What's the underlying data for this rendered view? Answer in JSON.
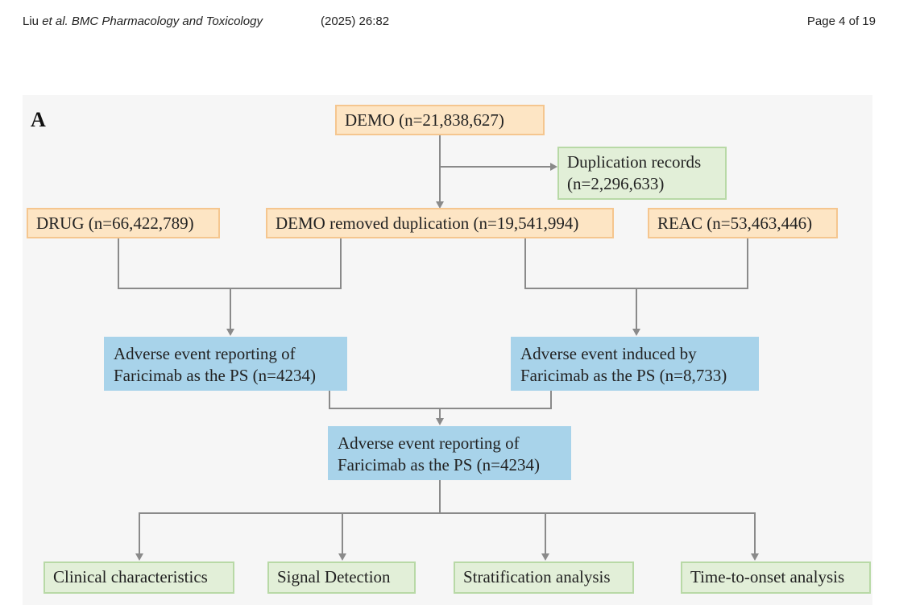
{
  "header": {
    "authors": "Liu ",
    "et_al": "et al.",
    "journal": " BMC Pharmacology and Toxicology",
    "citation": "(2025) 26:82",
    "page": "Page 4 of 19"
  },
  "figure": {
    "panel_label": "A",
    "demo": "DEMO (n=21,838,627)",
    "duplication_line1": "Duplication records",
    "duplication_line2": "(n=2,296,633)",
    "drug": "DRUG (n=66,422,789)",
    "demo_removed": "DEMO removed duplication (n=19,541,994)",
    "reac": "REAC (n=53,463,446)",
    "ae_left_line1": "Adverse event reporting of",
    "ae_left_line2": "Faricimab as the PS (n=4234)",
    "ae_right_line1": "Adverse event induced by",
    "ae_right_line2": "Faricimab as the PS (n=8,733)",
    "ae_final_line1": "Adverse event reporting of",
    "ae_final_line2": "Faricimab as the PS (n=4234)",
    "outputs": [
      "Clinical characteristics",
      "Signal Detection",
      "Stratification analysis",
      "Time-to-onset analysis"
    ]
  }
}
